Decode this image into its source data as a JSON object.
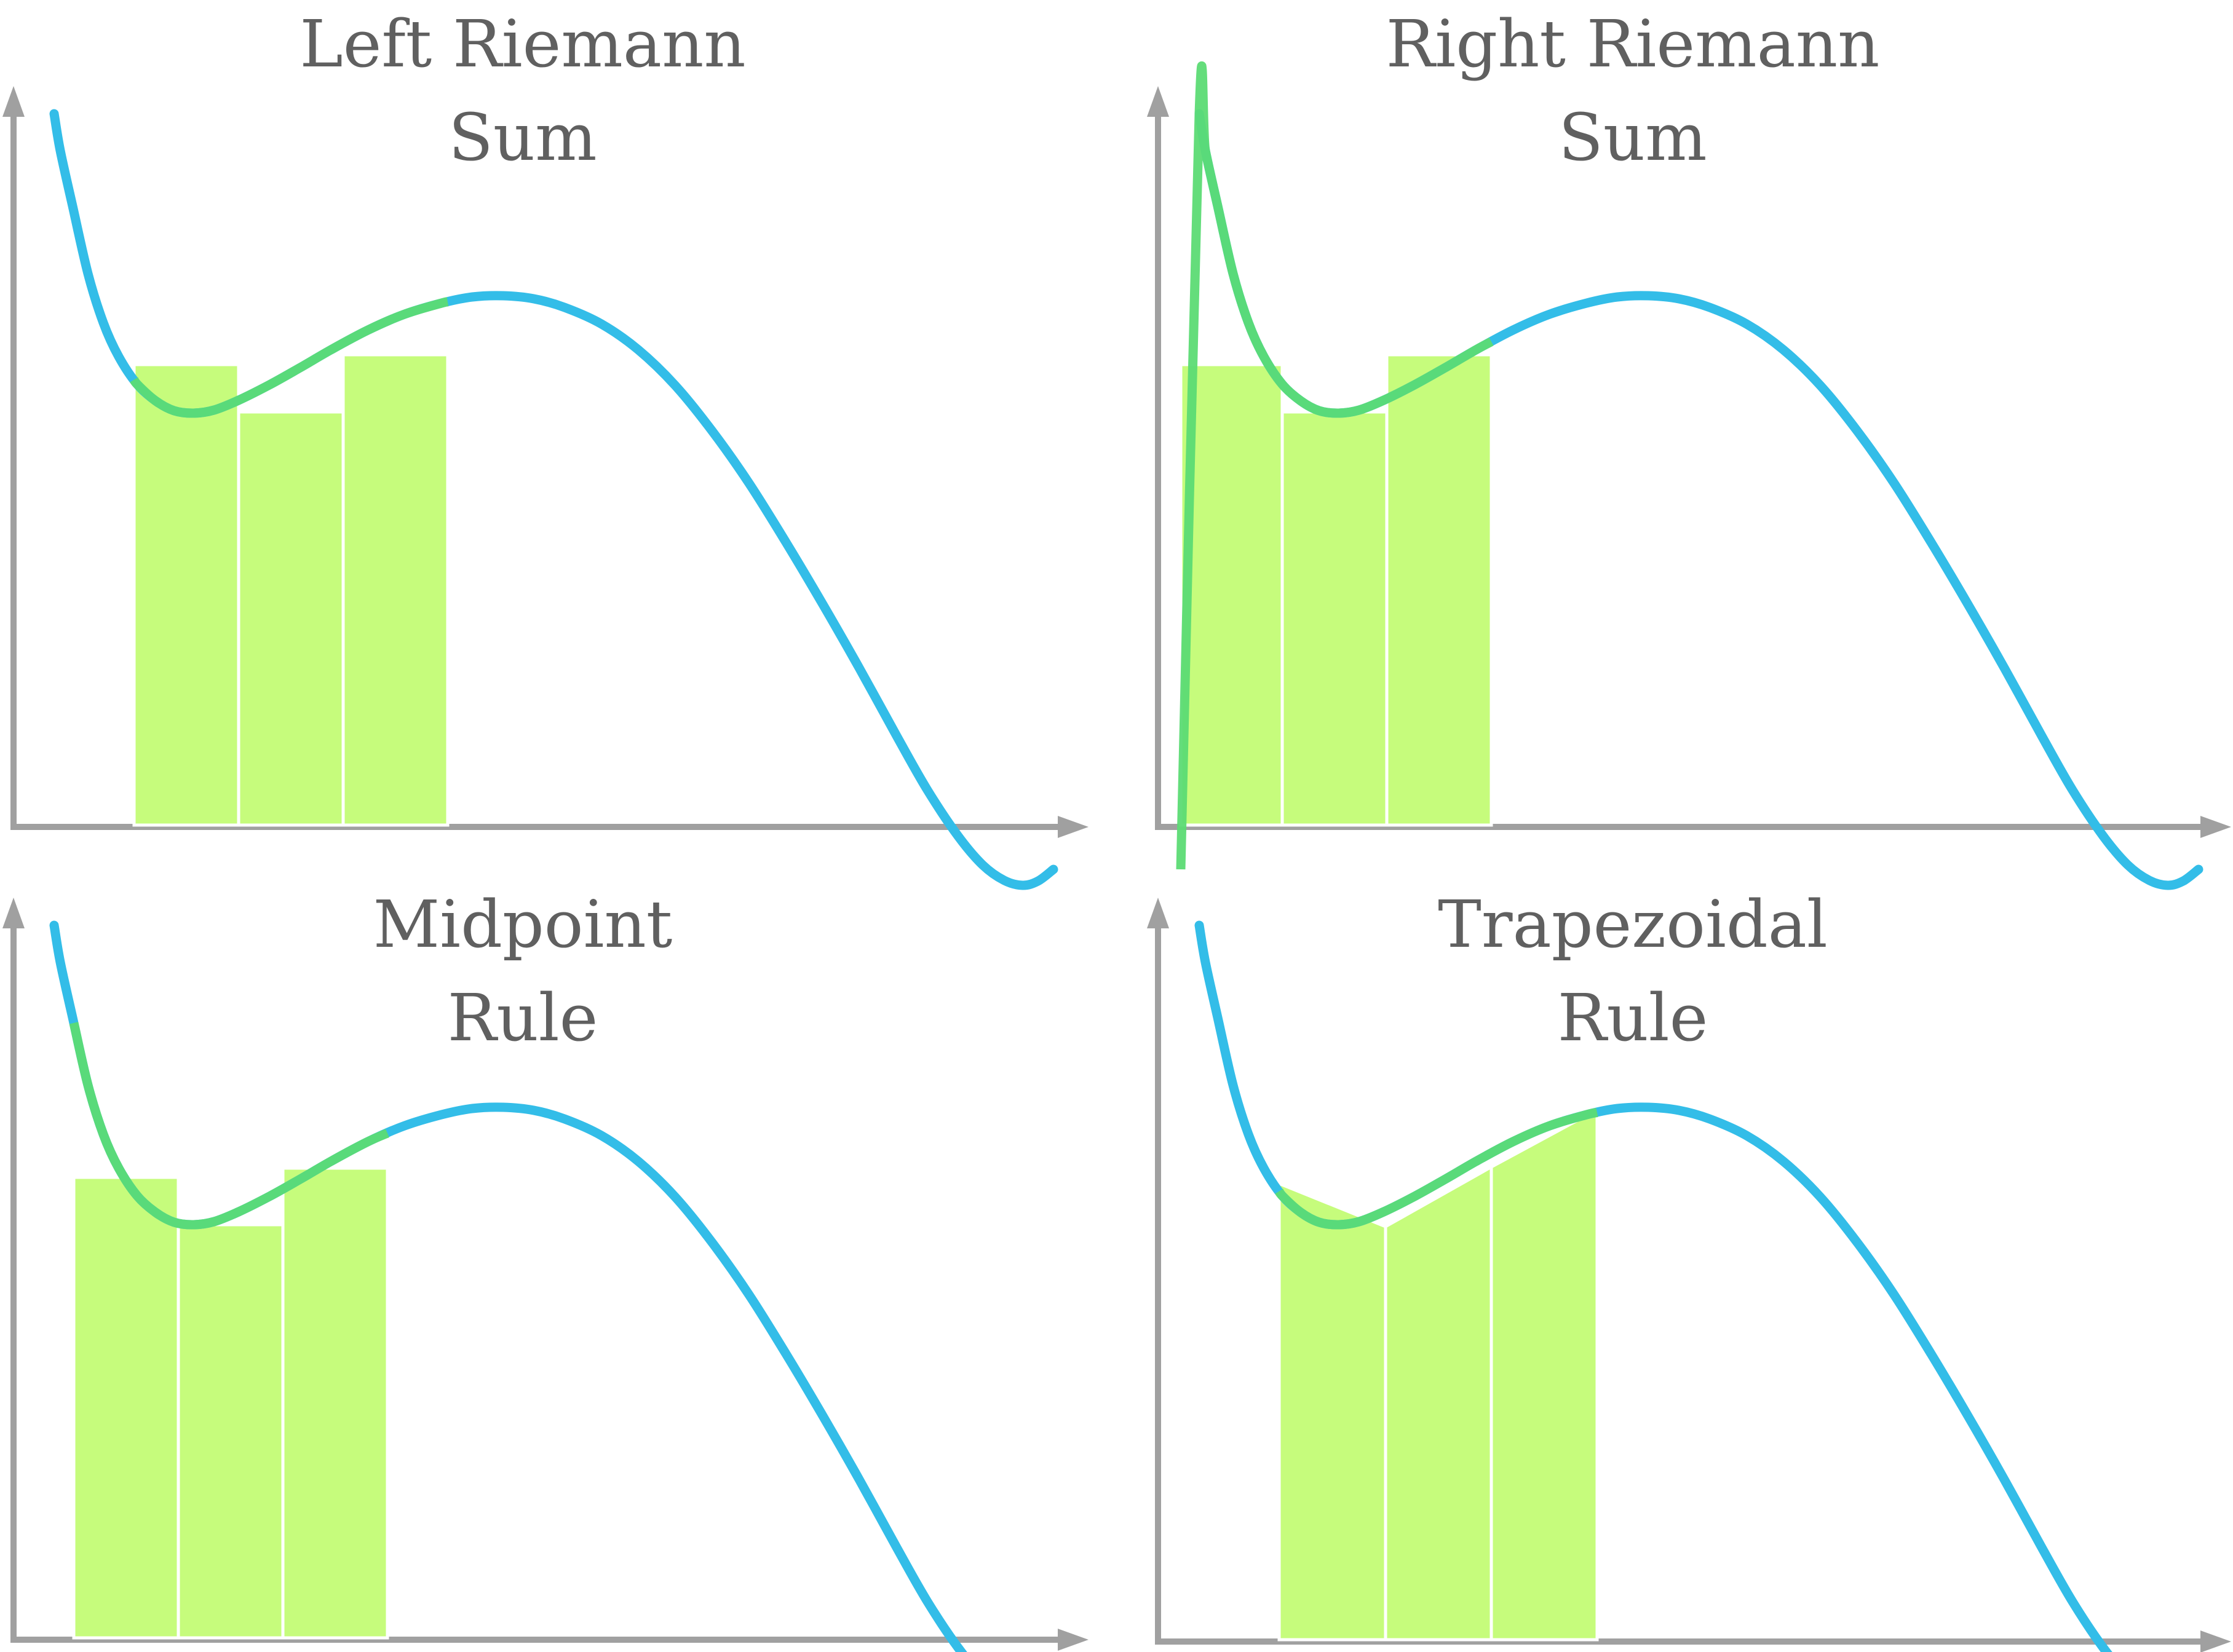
{
  "colors": {
    "curve": "#33bde8",
    "fill": "#c6fc7c",
    "edge": "#ffffff",
    "axes": "#a0a0a0",
    "text": "#606060",
    "overlap": "#5cdb74"
  },
  "panels": [
    {
      "id": "left-riemann",
      "method": "left",
      "title": {
        "line1": "Left Riemann",
        "line2": "Sum"
      },
      "chart_data": {
        "type": "area",
        "method": "left",
        "curve": "cubic-like polynomial: steep start, local min near x=0.30, local max near x=0.70, near zero at x=1.3",
        "x_domain": [
          0.0,
          1.42
        ],
        "y_range": [
          0,
          1.0
        ],
        "partition": [
          0.15,
          0.3,
          0.45,
          0.6
        ],
        "rect_heights": [
          0.64,
          0.57,
          0.65
        ]
      }
    },
    {
      "id": "right-riemann",
      "method": "right",
      "title": {
        "line1": "Right Riemann",
        "line2": "Sum"
      },
      "chart_data": {
        "type": "area",
        "method": "right",
        "partition": [
          0.0,
          0.15,
          0.3,
          0.45
        ],
        "rect_heights": [
          0.64,
          0.57,
          0.65
        ]
      }
    },
    {
      "id": "midpoint-rule",
      "method": "midpoint",
      "title": {
        "line1": "Midpoint",
        "line2": "Rule"
      },
      "chart_data": {
        "type": "area",
        "method": "midpoint",
        "partition": [
          0.075,
          0.225,
          0.375,
          0.525
        ],
        "rect_heights": [
          0.64,
          0.57,
          0.65
        ]
      }
    },
    {
      "id": "trapezoidal-rule",
      "method": "trapezoid",
      "title": {
        "line1": "Trapezoidal",
        "line2": "Rule"
      },
      "chart_data": {
        "type": "area",
        "method": "trapezoid",
        "partition": [
          0.15,
          0.3,
          0.45,
          0.6
        ]
      }
    }
  ]
}
